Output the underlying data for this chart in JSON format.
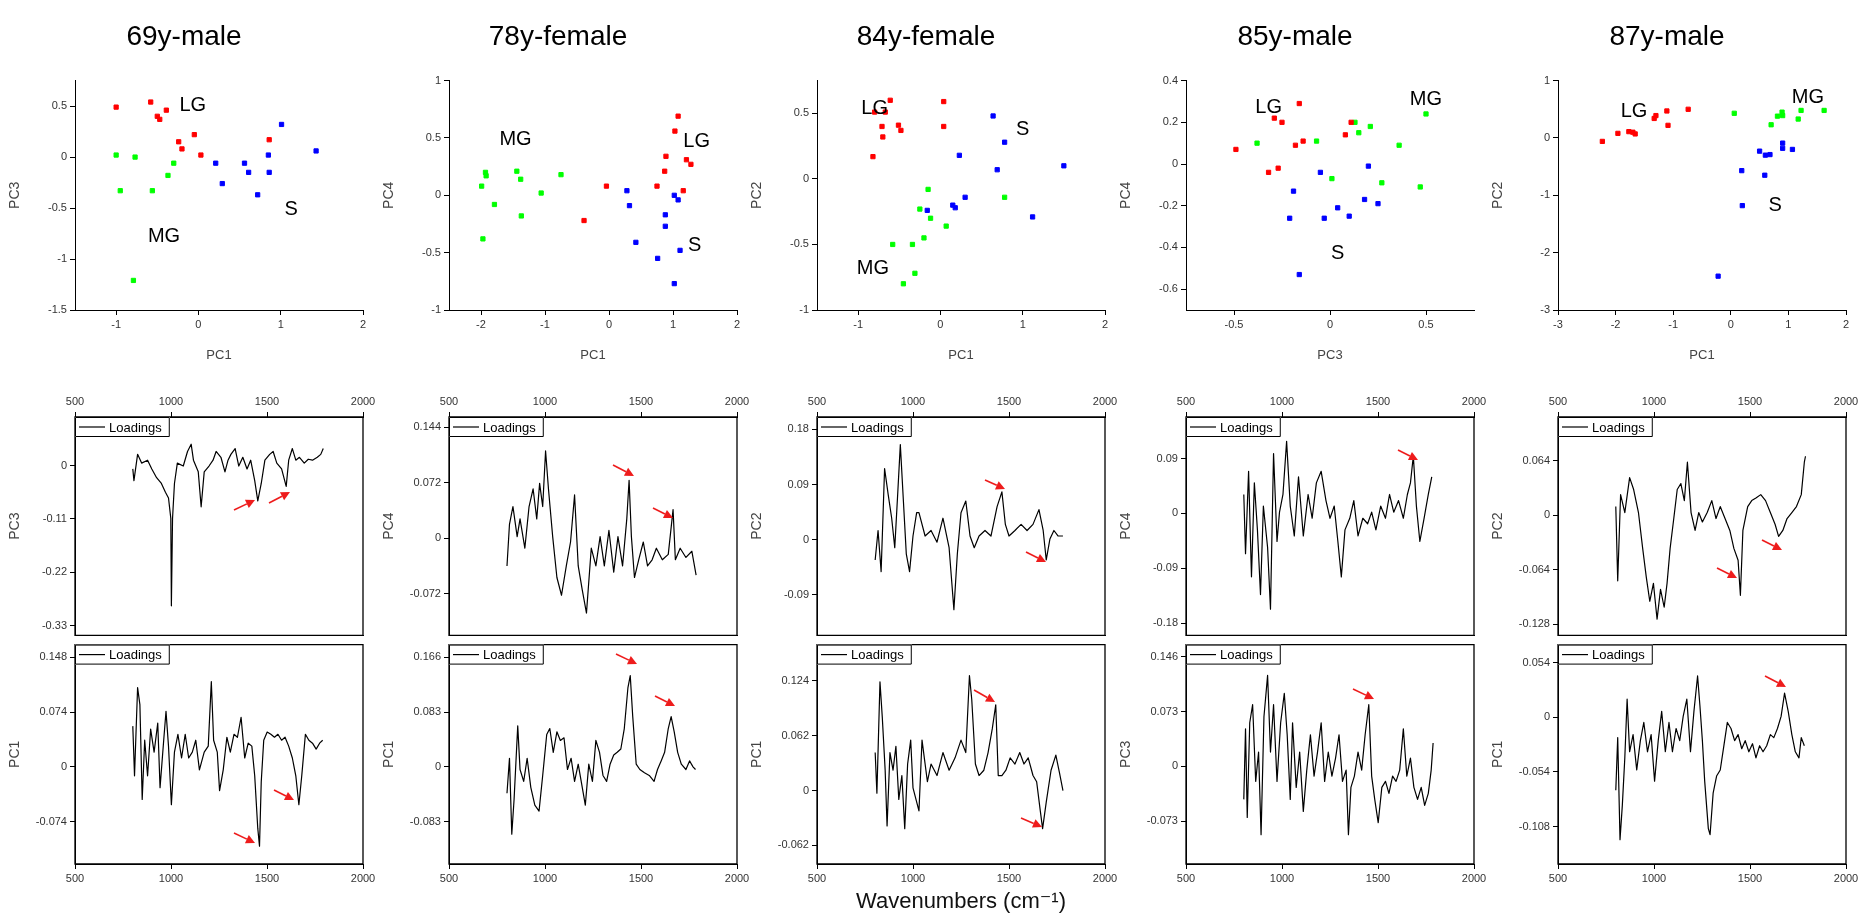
{
  "chart_data": [
    {
      "type": "scatter",
      "title": "69y-male",
      "xlabel": "PC1",
      "ylabel": "PC3",
      "marker": "square",
      "xlim": [
        -1.5,
        2
      ],
      "xticks": [
        -1,
        0,
        1,
        2
      ],
      "ylim": [
        -1.5,
        0.75
      ],
      "yticks": [
        -1.5,
        -1,
        -0.5,
        0,
        0.5
      ],
      "series": [
        {
          "color": "#ff0000",
          "x": [
            -1,
            -0.58,
            -0.39,
            -0.5,
            -0.47,
            -0.24,
            -0.2,
            -0.05,
            0.03,
            0.86
          ],
          "values": [
            0.49,
            0.54,
            0.46,
            0.4,
            0.37,
            0.15,
            0.08,
            0.22,
            0.02,
            0.17
          ]
        },
        {
          "color": "#00ff00",
          "x": [
            -1,
            -0.77,
            -0.3,
            -0.37,
            -0.95,
            -0.56,
            -0.79
          ],
          "values": [
            0.02,
            0,
            -0.06,
            -0.18,
            -0.33,
            -0.33,
            -1.21
          ]
        },
        {
          "color": "#0000ff",
          "x": [
            0.21,
            0.29,
            0.56,
            0.61,
            0.72,
            0.85,
            0.86,
            1.01,
            1.43
          ],
          "values": [
            -0.06,
            -0.26,
            -0.06,
            -0.15,
            -0.37,
            0.02,
            -0.15,
            0.32,
            0.06
          ]
        }
      ],
      "annotations": [
        "LG",
        "S",
        "MG"
      ]
    },
    {
      "type": "scatter",
      "title": "78y-female",
      "xlabel": "PC1",
      "ylabel": "PC4",
      "marker": "square",
      "xlim": [
        -2.5,
        2
      ],
      "xticks": [
        -2,
        -1,
        0,
        1,
        2
      ],
      "ylim": [
        -1,
        1
      ],
      "yticks": [
        -1,
        -0.5,
        0,
        0.5,
        1
      ],
      "series": [
        {
          "color": "#ff0000",
          "x": [
            1.08,
            1.03,
            0.89,
            0.87,
            0.75,
            1.21,
            1.28,
            1.16,
            -0.04,
            -0.39
          ],
          "values": [
            0.69,
            0.56,
            0.34,
            0.21,
            0.08,
            0.31,
            0.27,
            0.04,
            0.08,
            -0.22
          ]
        },
        {
          "color": "#00ff00",
          "x": [
            -1.93,
            -1.92,
            -1.99,
            -1.79,
            -1.97,
            -1.44,
            -1.38,
            -1.37,
            -1.06,
            -0.75
          ],
          "values": [
            0.2,
            0.17,
            0.08,
            -0.08,
            -0.38,
            0.21,
            0.14,
            -0.18,
            0.02,
            0.18
          ]
        },
        {
          "color": "#0000ff",
          "x": [
            0.28,
            0.32,
            0.42,
            0.76,
            0.88,
            0.88,
            1.02,
            1.08,
            1.11,
            1.02
          ],
          "values": [
            0.04,
            -0.09,
            -0.41,
            -0.55,
            -0.17,
            -0.27,
            0,
            -0.04,
            -0.48,
            -0.77
          ]
        }
      ],
      "annotations": [
        "MG",
        "LG",
        "S"
      ]
    },
    {
      "type": "scatter",
      "title": "84y-female",
      "xlabel": "PC1",
      "ylabel": "PC2",
      "marker": "square",
      "xlim": [
        -1.5,
        2
      ],
      "xticks": [
        -1,
        0,
        1,
        2
      ],
      "ylim": [
        -1,
        0.75
      ],
      "yticks": [
        -1,
        -0.5,
        0,
        0.5
      ],
      "series": [
        {
          "color": "#ff0000",
          "x": [
            -0.61,
            -0.67,
            -0.8,
            -0.71,
            -0.7,
            -0.51,
            -0.48,
            -0.82,
            0.04,
            0.04
          ],
          "values": [
            0.6,
            0.51,
            0.51,
            0.4,
            0.32,
            0.41,
            0.37,
            0.17,
            0.59,
            0.4
          ]
        },
        {
          "color": "#00ff00",
          "x": [
            -0.15,
            -0.12,
            -0.25,
            -0.2,
            -0.34,
            -0.58,
            -0.31,
            -0.45,
            0.07,
            0.78
          ],
          "values": [
            -0.08,
            -0.3,
            -0.23,
            -0.45,
            -0.5,
            -0.5,
            -0.72,
            -0.8,
            -0.36,
            -0.14
          ]
        },
        {
          "color": "#0000ff",
          "x": [
            -0.16,
            0.15,
            0.18,
            0.3,
            0.23,
            0.64,
            0.78,
            0.69,
            1.12,
            1.5
          ],
          "values": [
            -0.24,
            -0.2,
            -0.22,
            -0.14,
            0.18,
            0.48,
            0.28,
            0.07,
            -0.29,
            0.1
          ]
        }
      ],
      "annotations": [
        "LG",
        "MG",
        "S"
      ]
    },
    {
      "type": "scatter",
      "title": "85y-male",
      "xlabel": "PC3",
      "ylabel": "PC4",
      "marker": "square",
      "xlim": [
        -0.75,
        0.75
      ],
      "xticks": [
        -0.5,
        0,
        0.5
      ],
      "ylim": [
        -0.7,
        0.4
      ],
      "yticks": [
        -0.6,
        -0.4,
        -0.2,
        0,
        0.2,
        0.4
      ],
      "series": [
        {
          "color": "#ff0000",
          "x": [
            -0.49,
            -0.32,
            -0.27,
            -0.29,
            -0.25,
            -0.16,
            -0.18,
            -0.14,
            0.08,
            0.11
          ],
          "values": [
            0.07,
            -0.04,
            -0.02,
            0.22,
            0.2,
            0.29,
            0.09,
            0.11,
            0.14,
            0.2
          ]
        },
        {
          "color": "#00ff00",
          "x": [
            -0.38,
            -0.07,
            0.01,
            0.13,
            0.15,
            0.21,
            0.36,
            0.27,
            0.47,
            0.5
          ],
          "values": [
            0.1,
            0.11,
            -0.07,
            0.2,
            0.15,
            0.18,
            0.09,
            -0.09,
            -0.11,
            0.24
          ]
        },
        {
          "color": "#0000ff",
          "x": [
            -0.19,
            -0.21,
            -0.05,
            -0.03,
            0.04,
            0.1,
            0.18,
            0.2,
            0.25,
            -0.16
          ],
          "values": [
            -0.13,
            -0.26,
            -0.04,
            -0.26,
            -0.21,
            -0.25,
            -0.17,
            -0.01,
            -0.19,
            -0.53
          ]
        }
      ],
      "annotations": [
        "LG",
        "MG",
        "S"
      ]
    },
    {
      "type": "scatter",
      "title": "87y-male",
      "xlabel": "PC1",
      "ylabel": "PC2",
      "marker": "square",
      "xlim": [
        -3,
        2
      ],
      "xticks": [
        -3,
        -2,
        -1,
        0,
        1,
        2
      ],
      "ylim": [
        -3,
        1
      ],
      "yticks": [
        -3,
        -2,
        -1,
        0,
        1
      ],
      "series": [
        {
          "color": "#ff0000",
          "x": [
            -2.23,
            -1.96,
            -1.77,
            -1.7,
            -1.66,
            -1.33,
            -1.3,
            -1.11,
            -1.09,
            -0.74
          ],
          "values": [
            -0.06,
            0.08,
            0.11,
            0.1,
            0.07,
            0.34,
            0.39,
            0.47,
            0.22,
            0.5
          ]
        },
        {
          "color": "#00ff00",
          "x": [
            0.06,
            0.7,
            0.81,
            0.89,
            0.9,
            1.17,
            1.22,
            1.62
          ],
          "values": [
            0.43,
            0.23,
            0.38,
            0.45,
            0.39,
            0.33,
            0.48,
            0.48
          ]
        },
        {
          "color": "#0000ff",
          "x": [
            0.19,
            0.2,
            0.5,
            0.6,
            0.68,
            0.59,
            0.9,
            0.9,
            1.07,
            -0.22
          ],
          "values": [
            -0.57,
            -1.18,
            -0.23,
            -0.3,
            -0.29,
            -0.65,
            -0.09,
            -0.18,
            -0.2,
            -2.41
          ]
        }
      ],
      "annotations": [
        "LG",
        "MG",
        "S"
      ]
    },
    {
      "type": "line",
      "ylabel": "PC3",
      "legend": "top left",
      "xlim": [
        500,
        2000
      ],
      "x2lim": [
        500,
        2000
      ],
      "x2ticks": [
        500,
        1000,
        1500,
        2000
      ],
      "ylim": [
        -0.35,
        0.1
      ],
      "yticks": [
        -0.33,
        -0.22,
        -0.11,
        0
      ],
      "series": [
        {
          "name": "Loadings",
          "color": "#000000",
          "x": [
            801,
            807,
            826,
            847,
            878,
            900,
            925,
            950,
            971,
            987,
            999,
            1002,
            1008,
            1018,
            1033,
            1064,
            1086,
            1105,
            1117,
            1142,
            1157,
            1173,
            1198,
            1219,
            1235,
            1260,
            1281,
            1297,
            1312,
            1334,
            1353,
            1374,
            1396,
            1415,
            1436,
            1452,
            1470,
            1489,
            1514,
            1532,
            1551,
            1576,
            1600,
            1613,
            1632,
            1650,
            1669,
            1694,
            1715,
            1737,
            1762,
            1780,
            1793
          ],
          "values": [
            -0.007,
            -0.031,
            0.023,
            0.005,
            0.011,
            -0.007,
            -0.025,
            -0.037,
            -0.055,
            -0.067,
            -0.109,
            -0.289,
            -0.109,
            -0.037,
            0.005,
            -0.001,
            0.029,
            0.044,
            0.011,
            -0.013,
            -0.085,
            -0.013,
            -0.001,
            0.011,
            0.029,
            0.017,
            -0.013,
            0.011,
            0.023,
            0.035,
            -0.001,
            0.017,
            -0.007,
            0.011,
            -0.031,
            -0.073,
            -0.037,
            0.011,
            0.023,
            0.029,
            0.005,
            -0.007,
            -0.043,
            0.011,
            0.035,
            0.011,
            0.017,
            0.005,
            0.013,
            0.011,
            0.017,
            0.023,
            0.035
          ]
        }
      ]
    },
    {
      "type": "line",
      "ylabel": "PC4",
      "legend": "top left",
      "xlim": [
        500,
        2000
      ],
      "x2lim": [
        500,
        2000
      ],
      "x2ticks": [
        500,
        1000,
        1500,
        2000
      ],
      "ylim": [
        -0.126,
        0.157
      ],
      "yticks": [
        -0.072,
        0,
        0.072,
        0.144
      ],
      "series": [
        {
          "name": "Loadings",
          "color": "#000000",
          "x": [
            802,
            815,
            833,
            855,
            870,
            895,
            917,
            938,
            957,
            972,
            988,
            1003,
            1018,
            1040,
            1062,
            1086,
            1111,
            1133,
            1154,
            1173,
            1194,
            1216,
            1241,
            1265,
            1287,
            1309,
            1333,
            1358,
            1380,
            1404,
            1426,
            1438,
            1450,
            1466,
            1488,
            1512,
            1534,
            1558,
            1580,
            1611,
            1642,
            1667,
            1679,
            1704,
            1734,
            1765,
            1787
          ],
          "values": [
            -0.036,
            0.018,
            0.041,
            0.002,
            0.025,
            -0.013,
            0.041,
            0.064,
            0.025,
            0.071,
            0.041,
            0.113,
            0.064,
            0.002,
            -0.051,
            -0.074,
            -0.036,
            -0.005,
            0.056,
            -0.036,
            -0.067,
            -0.097,
            -0.013,
            -0.036,
            0.002,
            -0.036,
            0.01,
            -0.044,
            0.002,
            -0.036,
            0.025,
            0.075,
            0.002,
            -0.051,
            -0.028,
            -0.005,
            -0.036,
            -0.028,
            -0.013,
            -0.028,
            -0.021,
            0.037,
            -0.028,
            -0.013,
            -0.025,
            -0.017,
            -0.048
          ]
        }
      ]
    },
    {
      "type": "line",
      "ylabel": "PC2",
      "legend": "top left",
      "xlim": [
        500,
        2000
      ],
      "x2lim": [
        500,
        2000
      ],
      "x2ticks": [
        500,
        1000,
        1500,
        2000
      ],
      "ylim": [
        -0.156,
        0.2
      ],
      "yticks": [
        -0.09,
        0,
        0.09,
        0.18
      ],
      "series": [
        {
          "name": "Loadings",
          "color": "#000000",
          "x": [
            803,
            818,
            834,
            852,
            871,
            889,
            905,
            920,
            934,
            950,
            965,
            982,
            1000,
            1019,
            1031,
            1063,
            1094,
            1125,
            1156,
            1188,
            1213,
            1231,
            1250,
            1275,
            1297,
            1319,
            1344,
            1375,
            1406,
            1438,
            1463,
            1481,
            1500,
            1531,
            1563,
            1594,
            1625,
            1656,
            1678,
            1694,
            1713,
            1734,
            1756,
            1781
          ],
          "values": [
            -0.033,
            0.015,
            -0.052,
            0.116,
            0.073,
            0.035,
            -0.013,
            0.073,
            0.155,
            0.063,
            -0.023,
            -0.052,
            0.006,
            0.044,
            0.044,
            0.006,
            0.015,
            -0.004,
            0.035,
            -0.013,
            -0.114,
            -0.023,
            0.044,
            0.063,
            0.006,
            -0.013,
            0.006,
            0.015,
            0.006,
            0.054,
            0.078,
            0.025,
            0.006,
            0.015,
            0.025,
            0.015,
            0.025,
            0.049,
            0.015,
            -0.033,
            0.001,
            0.015,
            0.006,
            0.006
          ]
        }
      ]
    },
    {
      "type": "line",
      "ylabel": "PC4",
      "legend": "top left",
      "xlim": [
        500,
        2000
      ],
      "x2lim": [
        500,
        2000
      ],
      "x2ticks": [
        500,
        1000,
        1500,
        2000
      ],
      "ylim": [
        -0.2,
        0.158
      ],
      "yticks": [
        -0.18,
        -0.09,
        0,
        0.09
      ],
      "series": [
        {
          "name": "Loadings",
          "color": "#000000",
          "x": [
            801,
            810,
            826,
            841,
            856,
            872,
            888,
            903,
            925,
            940,
            956,
            974,
            987,
            1005,
            1024,
            1043,
            1064,
            1086,
            1111,
            1136,
            1157,
            1179,
            1204,
            1229,
            1250,
            1272,
            1291,
            1309,
            1328,
            1353,
            1374,
            1396,
            1421,
            1446,
            1467,
            1489,
            1514,
            1539,
            1560,
            1582,
            1607,
            1632,
            1653,
            1669,
            1684,
            1700,
            1718,
            1740,
            1762,
            1780
          ],
          "values": [
            0.031,
            -0.066,
            0.069,
            -0.104,
            0.05,
            -0.027,
            -0.133,
            0.012,
            -0.056,
            -0.157,
            0.098,
            -0.046,
            0.002,
            0.031,
            0.118,
            0.012,
            -0.037,
            0.06,
            -0.037,
            0.031,
            -0.008,
            0.05,
            0.069,
            0.021,
            -0.008,
            0.012,
            -0.046,
            -0.104,
            -0.027,
            -0.008,
            0.021,
            -0.037,
            -0.008,
            -0.017,
            0.002,
            -0.027,
            0.012,
            -0.008,
            0.031,
            0.002,
            0.021,
            -0.008,
            0.031,
            0.05,
            0.094,
            0.012,
            -0.046,
            -0.008,
            0.031,
            0.06
          ]
        }
      ]
    },
    {
      "type": "line",
      "ylabel": "PC2",
      "legend": "top left",
      "xlim": [
        500,
        2000
      ],
      "x2lim": [
        500,
        2000
      ],
      "x2ticks": [
        500,
        1000,
        1500,
        2000
      ],
      "ylim": [
        -0.141,
        0.115
      ],
      "yticks": [
        -0.128,
        -0.064,
        0,
        0.064
      ],
      "series": [
        {
          "name": "Loadings",
          "color": "#000000",
          "x": [
            801,
            811,
            826,
            848,
            873,
            894,
            919,
            941,
            960,
            978,
            997,
            1016,
            1034,
            1053,
            1068,
            1084,
            1103,
            1121,
            1140,
            1158,
            1174,
            1193,
            1214,
            1233,
            1252,
            1277,
            1301,
            1323,
            1345,
            1370,
            1395,
            1416,
            1438,
            1450,
            1463,
            1488,
            1509,
            1531,
            1556,
            1581,
            1606,
            1631,
            1649,
            1671,
            1693,
            1718,
            1742,
            1767,
            1783,
            1789
          ],
          "values": [
            0.01,
            -0.077,
            0.024,
            0.003,
            0.044,
            0.03,
            0.003,
            -0.039,
            -0.073,
            -0.101,
            -0.08,
            -0.122,
            -0.087,
            -0.108,
            -0.08,
            -0.039,
            -0.004,
            0.03,
            0.037,
            0.017,
            0.062,
            0.003,
            -0.018,
            0.003,
            -0.008,
            0.003,
            0.017,
            -0.004,
            0.01,
            -0.004,
            -0.018,
            -0.039,
            -0.053,
            -0.094,
            -0.018,
            0.01,
            0.017,
            0.02,
            0.024,
            0.017,
            0.003,
            -0.011,
            -0.025,
            -0.018,
            -0.004,
            0.003,
            0.01,
            0.024,
            0.062,
            0.069
          ]
        }
      ]
    },
    {
      "type": "line",
      "ylabel": "PC1",
      "legend": "top left",
      "xlim": [
        500,
        2000
      ],
      "xticks": [
        500,
        1000,
        1500,
        2000
      ],
      "ylim": [
        -0.131,
        0.165
      ],
      "yticks": [
        -0.074,
        0,
        0.074,
        0.148
      ],
      "series": [
        {
          "name": "Loadings",
          "color": "#000000",
          "x": [
            801,
            810,
            826,
            838,
            850,
            863,
            878,
            894,
            912,
            931,
            943,
            962,
            974,
            987,
            1002,
            1018,
            1036,
            1055,
            1074,
            1092,
            1111,
            1129,
            1148,
            1173,
            1194,
            1210,
            1222,
            1241,
            1253,
            1272,
            1291,
            1309,
            1328,
            1346,
            1365,
            1384,
            1402,
            1421,
            1436,
            1452,
            1461,
            1470,
            1483,
            1501,
            1520,
            1539,
            1557,
            1576,
            1594,
            1613,
            1632,
            1650,
            1666,
            1681,
            1700,
            1718,
            1737,
            1756,
            1774,
            1790
          ],
          "values": [
            0.055,
            -0.012,
            0.107,
            0.084,
            -0.044,
            0.036,
            -0.012,
            0.051,
            0.02,
            0.059,
            -0.028,
            0.036,
            0.075,
            0.028,
            -0.051,
            0.02,
            0.044,
            0.012,
            0.044,
            0.012,
            0.02,
            0.036,
            -0.004,
            0.02,
            0.028,
            0.115,
            0.036,
            0.02,
            -0.032,
            -0.004,
            0.04,
            0.02,
            0.044,
            0.04,
            0.067,
            0.012,
            0.032,
            0.028,
            -0.012,
            -0.083,
            -0.107,
            -0.02,
            0.036,
            0.047,
            0.044,
            0.04,
            0.044,
            0.036,
            0.04,
            0.028,
            0.012,
            -0.012,
            -0.051,
            -0.012,
            0.044,
            0.036,
            0.032,
            0.024,
            0.032,
            0.036
          ]
        }
      ]
    },
    {
      "type": "line",
      "ylabel": "PC1",
      "legend": "top left",
      "xlim": [
        500,
        2000
      ],
      "xticks": [
        500,
        1000,
        1500,
        2000
      ],
      "ylim": [
        -0.147,
        0.185
      ],
      "yticks": [
        -0.083,
        0,
        0.083,
        0.166
      ],
      "series": [
        {
          "name": "Loadings",
          "color": "#000000",
          "x": [
            802,
            815,
            827,
            839,
            858,
            870,
            889,
            907,
            926,
            947,
            969,
            988,
            1009,
            1025,
            1043,
            1062,
            1080,
            1099,
            1117,
            1136,
            1154,
            1173,
            1194,
            1210,
            1228,
            1247,
            1265,
            1284,
            1302,
            1321,
            1339,
            1358,
            1376,
            1395,
            1413,
            1432,
            1444,
            1457,
            1475,
            1494,
            1518,
            1543,
            1568,
            1586,
            1605,
            1623,
            1642,
            1657,
            1673,
            1691,
            1710,
            1734,
            1753,
            1771,
            1784
          ],
          "values": [
            -0.04,
            0.013,
            -0.102,
            -0.049,
            0.062,
            -0.004,
            -0.022,
            0.013,
            -0.031,
            -0.058,
            -0.067,
            -0.013,
            0.049,
            0.058,
            0.022,
            0.053,
            0.04,
            0.044,
            -0.004,
            0.013,
            -0.022,
            0.004,
            -0.031,
            -0.058,
            0.004,
            -0.022,
            0.04,
            0.022,
            -0.013,
            -0.022,
            0.004,
            0.018,
            0.022,
            0.027,
            0.058,
            0.12,
            0.138,
            0.076,
            0.004,
            -0.004,
            -0.009,
            -0.013,
            -0.022,
            -0.004,
            0.009,
            0.022,
            0.058,
            0.076,
            0.053,
            0.022,
            0.004,
            -0.004,
            0.009,
            0,
            -0.004
          ]
        }
      ]
    },
    {
      "type": "line",
      "ylabel": "PC1",
      "xlabel": "Wavenumbers (cm⁻¹)",
      "legend": "top left",
      "xlim": [
        500,
        2000
      ],
      "xticks": [
        500,
        1000,
        1500,
        2000
      ],
      "ylim": [
        -0.083,
        0.165
      ],
      "yticks": [
        -0.062,
        0,
        0.062,
        0.124
      ],
      "series": [
        {
          "name": "Loadings",
          "color": "#000000",
          "x": [
            803,
            812,
            828,
            840,
            855,
            865,
            880,
            896,
            911,
            926,
            942,
            957,
            972,
            988,
            1000,
            1031,
            1047,
            1075,
            1094,
            1125,
            1156,
            1188,
            1219,
            1250,
            1275,
            1294,
            1306,
            1325,
            1344,
            1369,
            1391,
            1413,
            1431,
            1444,
            1463,
            1484,
            1506,
            1531,
            1556,
            1578,
            1600,
            1625,
            1644,
            1663,
            1675,
            1694,
            1719,
            1744,
            1763,
            1781
          ],
          "values": [
            0.043,
            -0.003,
            0.123,
            0.083,
            0.023,
            -0.04,
            0.043,
            0.023,
            0.05,
            -0.01,
            0.017,
            -0.043,
            0.03,
            0.057,
            0.003,
            -0.023,
            0.057,
            0.01,
            0.03,
            0.017,
            0.043,
            0.023,
            0.037,
            0.057,
            0.043,
            0.13,
            0.103,
            0.03,
            0.017,
            0.023,
            0.043,
            0.07,
            0.097,
            0.017,
            0.017,
            0.023,
            0.037,
            0.03,
            0.043,
            0.03,
            0.037,
            0.017,
            0.01,
            -0.023,
            -0.043,
            -0.013,
            0.023,
            0.04,
            0.02,
            0
          ]
        }
      ]
    },
    {
      "type": "line",
      "ylabel": "PC3",
      "legend": "top left",
      "xlim": [
        500,
        2000
      ],
      "xticks": [
        500,
        1000,
        1500,
        2000
      ],
      "ylim": [
        -0.13,
        0.162
      ],
      "yticks": [
        -0.073,
        0,
        0.073,
        0.146
      ],
      "series": [
        {
          "name": "Loadings",
          "color": "#000000",
          "x": [
            801,
            810,
            819,
            832,
            847,
            863,
            878,
            891,
            906,
            925,
            940,
            956,
            974,
            993,
            1012,
            1027,
            1043,
            1055,
            1074,
            1092,
            1111,
            1129,
            1148,
            1167,
            1185,
            1204,
            1222,
            1241,
            1260,
            1279,
            1297,
            1315,
            1334,
            1346,
            1359,
            1377,
            1396,
            1415,
            1433,
            1452,
            1467,
            1483,
            1501,
            1520,
            1539,
            1557,
            1576,
            1594,
            1613,
            1632,
            1650,
            1669,
            1687,
            1706,
            1725,
            1743,
            1762,
            1777,
            1787
          ],
          "values": [
            -0.044,
            0.05,
            -0.068,
            0.058,
            0.082,
            -0.02,
            0.019,
            -0.091,
            0.066,
            0.121,
            0.019,
            0.082,
            -0.02,
            0.058,
            0.097,
            0.042,
            -0.044,
            0.058,
            -0.028,
            0.019,
            -0.06,
            -0.005,
            0.042,
            -0.013,
            0.019,
            0.058,
            -0.02,
            0.019,
            -0.013,
            0.011,
            0.042,
            -0.02,
            -0.005,
            -0.091,
            -0.028,
            -0.013,
            0.019,
            -0.005,
            0.042,
            0.082,
            -0.013,
            -0.044,
            -0.075,
            -0.028,
            -0.02,
            -0.036,
            -0.013,
            -0.02,
            -0.005,
            0.05,
            -0.013,
            0.011,
            -0.028,
            -0.044,
            -0.028,
            -0.052,
            -0.036,
            -0.005,
            0.031
          ]
        }
      ]
    },
    {
      "type": "line",
      "ylabel": "PC1",
      "legend": "top left",
      "xlim": [
        500,
        2000
      ],
      "xticks": [
        500,
        1000,
        1500,
        2000
      ],
      "ylim": [
        -0.145,
        0.072
      ],
      "yticks": [
        -0.108,
        -0.054,
        0,
        0.054
      ],
      "series": [
        {
          "name": "Loadings",
          "color": "#000000",
          "x": [
            801,
            811,
            823,
            835,
            848,
            860,
            873,
            891,
            910,
            929,
            947,
            966,
            985,
            1003,
            1022,
            1040,
            1059,
            1078,
            1096,
            1115,
            1134,
            1152,
            1171,
            1190,
            1208,
            1227,
            1239,
            1252,
            1264,
            1283,
            1292,
            1308,
            1326,
            1345,
            1364,
            1382,
            1401,
            1420,
            1438,
            1457,
            1475,
            1494,
            1513,
            1531,
            1550,
            1568,
            1587,
            1606,
            1624,
            1643,
            1662,
            1680,
            1699,
            1718,
            1736,
            1755,
            1767,
            1783
          ],
          "values": [
            -0.072,
            -0.02,
            -0.121,
            -0.087,
            -0.04,
            0.018,
            -0.034,
            -0.017,
            -0.052,
            -0.023,
            -0.005,
            -0.034,
            -0.017,
            -0.063,
            -0.023,
            0.006,
            -0.034,
            -0.005,
            -0.034,
            -0.011,
            -0.023,
            0.001,
            0.018,
            -0.034,
            0.006,
            0.041,
            0.012,
            -0.023,
            -0.063,
            -0.11,
            -0.116,
            -0.075,
            -0.058,
            -0.052,
            -0.028,
            -0.005,
            -0.011,
            -0.023,
            -0.017,
            -0.031,
            -0.023,
            -0.034,
            -0.026,
            -0.04,
            -0.028,
            -0.034,
            -0.028,
            -0.017,
            -0.02,
            -0.011,
            0.001,
            0.024,
            0.006,
            -0.017,
            -0.034,
            -0.04,
            -0.02,
            -0.028
          ]
        }
      ]
    }
  ]
}
